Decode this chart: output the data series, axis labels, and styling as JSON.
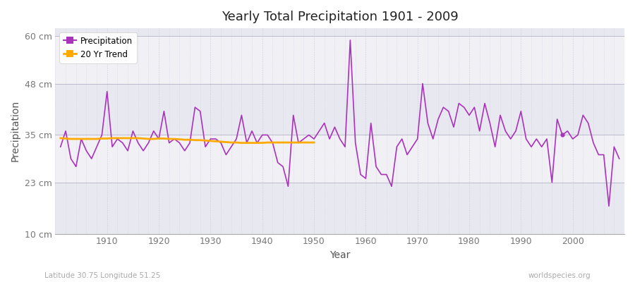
{
  "title": "Yearly Total Precipitation 1901 - 2009",
  "xlabel": "Year",
  "ylabel": "Precipitation",
  "subtitle_lat_lon": "Latitude 30.75 Longitude 51.25",
  "watermark": "worldspecies.org",
  "fig_bg_color": "#ffffff",
  "plot_bg_color": "#f0f0f5",
  "band_colors": [
    "#e8e8f0",
    "#f0f0f5"
  ],
  "line_color": "#aa33bb",
  "trend_color": "#ffaa00",
  "ylim": [
    10,
    62
  ],
  "yticks": [
    10,
    23,
    35,
    48,
    60
  ],
  "ytick_labels": [
    "10 cm",
    "23 cm",
    "35 cm",
    "48 cm",
    "60 cm"
  ],
  "years": [
    1901,
    1902,
    1903,
    1904,
    1905,
    1906,
    1907,
    1908,
    1909,
    1910,
    1911,
    1912,
    1913,
    1914,
    1915,
    1916,
    1917,
    1918,
    1919,
    1920,
    1921,
    1922,
    1923,
    1924,
    1925,
    1926,
    1927,
    1928,
    1929,
    1930,
    1931,
    1932,
    1933,
    1934,
    1935,
    1936,
    1937,
    1938,
    1939,
    1940,
    1941,
    1942,
    1943,
    1944,
    1945,
    1946,
    1947,
    1948,
    1949,
    1950,
    1951,
    1952,
    1953,
    1954,
    1955,
    1956,
    1957,
    1958,
    1959,
    1960,
    1961,
    1962,
    1963,
    1964,
    1965,
    1966,
    1967,
    1968,
    1969,
    1970,
    1971,
    1972,
    1973,
    1974,
    1975,
    1976,
    1977,
    1978,
    1979,
    1980,
    1981,
    1982,
    1983,
    1984,
    1985,
    1986,
    1987,
    1988,
    1989,
    1990,
    1991,
    1992,
    1993,
    1994,
    1995,
    1996,
    1997,
    1998,
    1999,
    2000,
    2001,
    2002,
    2003,
    2004,
    2005,
    2006,
    2007,
    2008,
    2009
  ],
  "precip": [
    32,
    36,
    29,
    27,
    34,
    31,
    29,
    32,
    35,
    46,
    32,
    34,
    33,
    31,
    36,
    33,
    31,
    33,
    36,
    34,
    41,
    33,
    34,
    33,
    31,
    33,
    42,
    41,
    32,
    34,
    34,
    33,
    30,
    32,
    34,
    40,
    33,
    36,
    33,
    35,
    35,
    33,
    28,
    27,
    22,
    40,
    33,
    34,
    35,
    34,
    36,
    38,
    34,
    37,
    34,
    32,
    59,
    33,
    25,
    24,
    38,
    27,
    25,
    25,
    22,
    32,
    34,
    30,
    32,
    34,
    48,
    38,
    34,
    39,
    42,
    41,
    37,
    43,
    42,
    40,
    42,
    36,
    43,
    38,
    32,
    40,
    36,
    34,
    36,
    41,
    34,
    32,
    34,
    32,
    34,
    23,
    39,
    35,
    36,
    34,
    35,
    40,
    38,
    33,
    30,
    30,
    17,
    32,
    29
  ],
  "trend_years": [
    1901,
    1902,
    1903,
    1904,
    1905,
    1906,
    1907,
    1908,
    1909,
    1910,
    1911,
    1912,
    1913,
    1914,
    1915,
    1916,
    1917,
    1918,
    1919,
    1920,
    1921,
    1922,
    1923,
    1924,
    1925,
    1926,
    1927,
    1928,
    1929,
    1930,
    1931,
    1932,
    1933,
    1934,
    1935,
    1936,
    1937,
    1938,
    1939,
    1940,
    1941,
    1942,
    1943,
    1944,
    1945,
    1946,
    1947,
    1948,
    1949,
    1950
  ],
  "trend_values": [
    34.2,
    34.1,
    34.0,
    34.0,
    34.0,
    34.0,
    34.0,
    34.0,
    34.1,
    34.1,
    34.2,
    34.2,
    34.2,
    34.2,
    34.2,
    34.2,
    34.1,
    34.0,
    34.0,
    34.1,
    34.1,
    34.0,
    34.0,
    33.9,
    33.8,
    33.8,
    33.7,
    33.7,
    33.6,
    33.5,
    33.4,
    33.3,
    33.2,
    33.1,
    33.1,
    33.0,
    33.0,
    33.0,
    33.0,
    33.0,
    33.1,
    33.1,
    33.1,
    33.1,
    33.1,
    33.1,
    33.1,
    33.1,
    33.1,
    33.1
  ]
}
